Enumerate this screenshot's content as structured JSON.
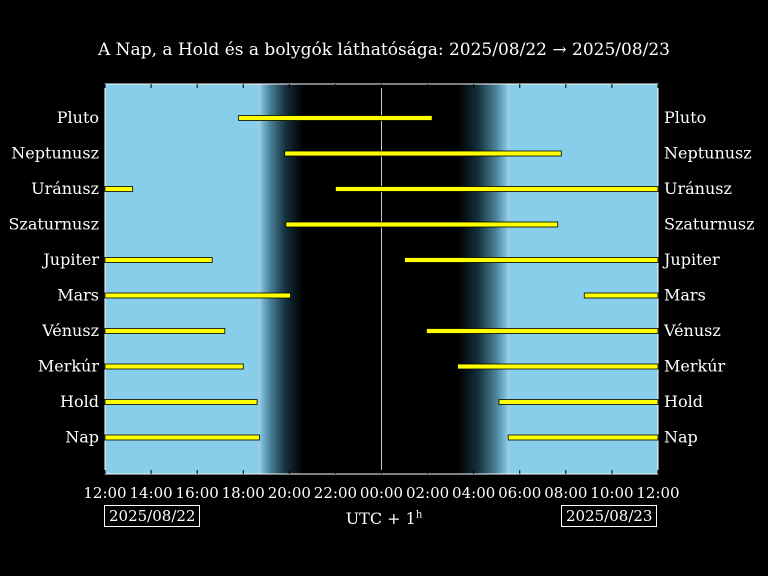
{
  "title": "A Nap, a Hold és a bolygók láthatósága: 2025/08/22 → 2025/08/23",
  "timezone_label": "UTC + 1",
  "timezone_suffix": "h",
  "date_left": "2025/08/22",
  "date_right": "2025/08/23",
  "colors": {
    "day": "#87ceeb",
    "night": "#000000",
    "bar": "#ffff00",
    "bar_edge": "#000000"
  },
  "chart_data": {
    "type": "bar",
    "orientation": "horizontal",
    "title": "A Nap, a Hold és a bolygók láthatósága: 2025/08/22 → 2025/08/23",
    "xlabel": "UTC + 1h",
    "x_unit": "hours after 2025/08/22 12:00",
    "xlim": [
      0,
      24
    ],
    "x_tick_labels": [
      "12:00",
      "14:00",
      "16:00",
      "18:00",
      "20:00",
      "22:00",
      "00:00",
      "02:00",
      "04:00",
      "06:00",
      "08:00",
      "10:00",
      "12:00"
    ],
    "sunset": 6.7,
    "sunrise": 17.5,
    "twilight": {
      "dusk_end": 8.6,
      "dawn_start": 15.3
    },
    "midnight_line": 12,
    "categories": [
      "Pluto",
      "Neptunusz",
      "Uránusz",
      "Szaturnusz",
      "Jupiter",
      "Mars",
      "Vénusz",
      "Merkúr",
      "Hold",
      "Nap"
    ],
    "intervals": [
      {
        "name": "Pluto",
        "segments": [
          [
            5.8,
            14.2
          ]
        ]
      },
      {
        "name": "Neptunusz",
        "segments": [
          [
            7.8,
            19.8
          ]
        ]
      },
      {
        "name": "Uránusz",
        "segments": [
          [
            0,
            1.2
          ],
          [
            10.0,
            24
          ]
        ]
      },
      {
        "name": "Szaturnusz",
        "segments": [
          [
            7.85,
            19.65
          ]
        ]
      },
      {
        "name": "Jupiter",
        "segments": [
          [
            0,
            4.65
          ],
          [
            13.0,
            24
          ]
        ]
      },
      {
        "name": "Mars",
        "segments": [
          [
            0,
            8.05
          ],
          [
            20.8,
            24
          ]
        ]
      },
      {
        "name": "Vénusz",
        "segments": [
          [
            0,
            5.2
          ],
          [
            13.95,
            24
          ]
        ]
      },
      {
        "name": "Merkúr",
        "segments": [
          [
            0,
            6.0
          ],
          [
            15.3,
            24
          ]
        ]
      },
      {
        "name": "Hold",
        "segments": [
          [
            0,
            6.6
          ],
          [
            17.1,
            24
          ]
        ]
      },
      {
        "name": "Nap",
        "segments": [
          [
            0,
            6.7
          ],
          [
            17.5,
            24
          ]
        ]
      }
    ]
  }
}
